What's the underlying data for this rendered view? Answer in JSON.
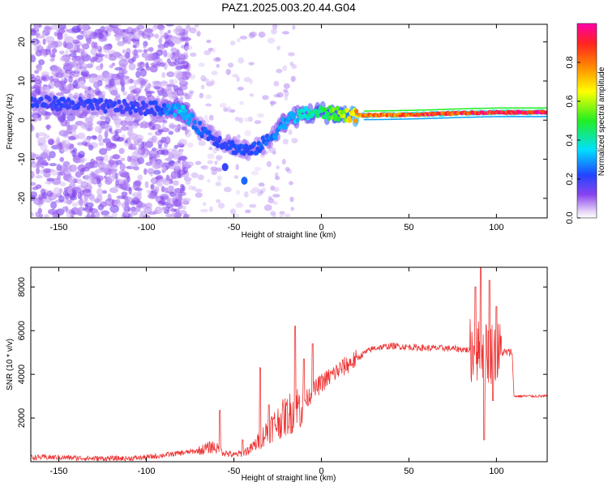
{
  "figure_title": "PAZ1.2025.003.20.44.G04",
  "colors": {
    "snr_line": "#ee3333",
    "frame": "#000000"
  },
  "chart_data": [
    {
      "type": "heatmap",
      "title": "PAZ1.2025.003.20.44.G04",
      "xlabel": "Height of straight line (km)",
      "ylabel": "Frequency (Hz)",
      "xlim": [
        -166,
        129
      ],
      "ylim": [
        -25,
        24.5
      ],
      "xticks": [
        -150,
        -100,
        -50,
        0,
        50,
        100
      ],
      "yticks": [
        -20,
        -10,
        0,
        10,
        20
      ],
      "colormap": "rainbow (white, violet, blue, cyan, green, yellow, orange, red, magenta)",
      "colorbar": {
        "label": "Normalized spectral amplitude",
        "range": [
          0,
          1
        ],
        "ticks": [
          0.0,
          0.2,
          0.4,
          0.6,
          0.8
        ]
      },
      "ridge": {
        "x": [
          -160,
          -140,
          -120,
          -100,
          -90,
          -80,
          -70,
          -60,
          -50,
          -40,
          -30,
          -20,
          -10,
          0,
          10,
          20,
          40,
          60,
          80,
          100,
          129
        ],
        "frequency_hz": [
          4.5,
          4,
          3.5,
          3,
          3,
          2.5,
          -2,
          -5,
          -7,
          -8,
          -5,
          0,
          1.5,
          2,
          1.5,
          1.2,
          1.3,
          1.5,
          1.8,
          2,
          2
        ],
        "amplitude": [
          0.2,
          0.2,
          0.2,
          0.2,
          0.25,
          0.35,
          0.25,
          0.2,
          0.22,
          0.22,
          0.25,
          0.3,
          0.4,
          0.45,
          0.55,
          0.75,
          0.85,
          0.88,
          0.9,
          0.92,
          0.95
        ]
      },
      "isolated_features": [
        {
          "x": -55,
          "frequency_hz": -12,
          "amplitude": 0.2
        },
        {
          "x": -44,
          "frequency_hz": -15.5,
          "amplitude": 0.25
        }
      ]
    },
    {
      "type": "line",
      "title": "",
      "xlabel": "Height of straight line (km)",
      "ylabel": "SNR (10 * v/v)",
      "xlim": [
        -166,
        129
      ],
      "ylim": [
        0,
        8900
      ],
      "xticks": [
        -150,
        -100,
        -50,
        0,
        50,
        100
      ],
      "yticks": [
        2000,
        4000,
        6000,
        8000
      ],
      "series": [
        {
          "x": [
            -166,
            -150,
            -130,
            -110,
            -100,
            -90,
            -80,
            -70,
            -62,
            -55,
            -50,
            -45,
            -40,
            -35,
            -30,
            -25,
            -20,
            -15,
            -10,
            -5,
            0,
            10,
            20,
            25,
            30,
            40,
            50,
            60,
            70,
            80,
            85,
            88,
            92,
            95,
            100,
            105,
            108,
            109,
            110,
            120,
            129
          ],
          "y": [
            200,
            200,
            150,
            150,
            200,
            300,
            400,
            500,
            700,
            400,
            300,
            400,
            600,
            1000,
            1500,
            1800,
            2100,
            2400,
            2700,
            3200,
            3600,
            4200,
            4700,
            5000,
            5200,
            5300,
            5250,
            5200,
            5200,
            5150,
            5100,
            5000,
            5100,
            5000,
            5000,
            5000,
            5000,
            5000,
            3000,
            3000,
            3000
          ],
          "spikes": [
            {
              "x": -58,
              "y": 2350
            },
            {
              "x": -45,
              "y": 1000
            },
            {
              "x": -35,
              "y": 4300
            },
            {
              "x": -30,
              "y": 2600
            },
            {
              "x": -15,
              "y": 6200
            },
            {
              "x": -10,
              "y": 4700
            },
            {
              "x": -5,
              "y": 5400
            },
            {
              "x": 88,
              "y": 8000
            },
            {
              "x": 91,
              "y": 8900
            },
            {
              "x": 93,
              "y": 1000
            },
            {
              "x": 96,
              "y": 8300
            },
            {
              "x": 98,
              "y": 2800
            },
            {
              "x": 100,
              "y": 7100
            }
          ]
        }
      ]
    }
  ]
}
